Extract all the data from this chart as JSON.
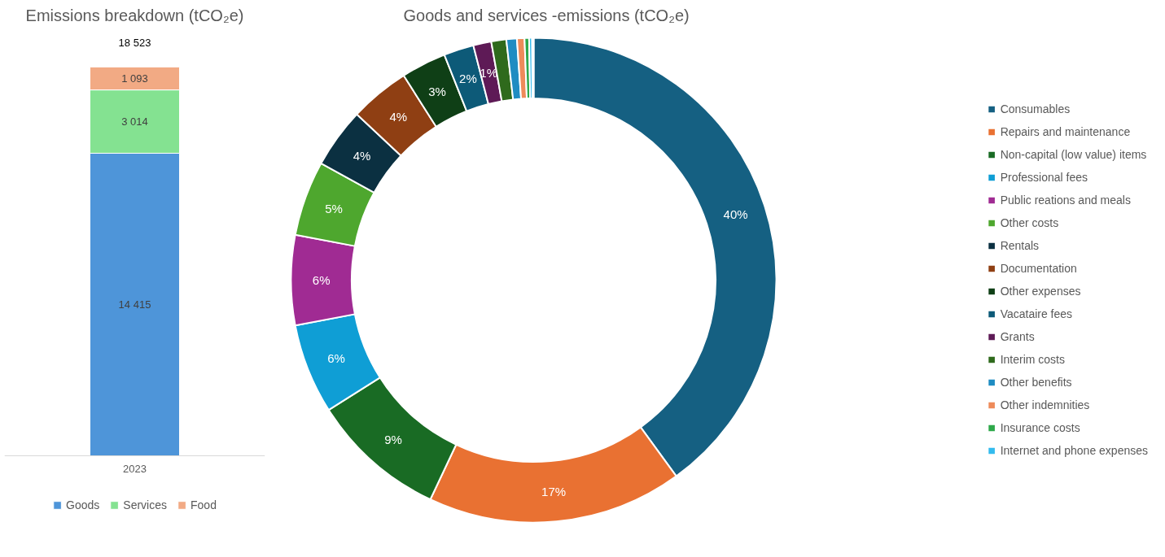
{
  "chart_data": [
    {
      "type": "bar",
      "title": "Emissions breakdown (tCO₂e)",
      "categories": [
        "2023"
      ],
      "stacked": true,
      "legend": "bottom",
      "grid": false,
      "tick_labels": "x",
      "series": [
        {
          "name": "Goods",
          "color": "#4e95d9",
          "values": [
            14415
          ],
          "value_labels": [
            "14 415"
          ]
        },
        {
          "name": "Services",
          "color": "#84e291",
          "values": [
            3014
          ],
          "value_labels": [
            "3 014"
          ]
        },
        {
          "name": "Food",
          "color": "#f2aa84",
          "values": [
            1093
          ],
          "value_labels": [
            "1 093"
          ]
        }
      ],
      "totals": [
        "18 523"
      ]
    },
    {
      "type": "donut",
      "title": "Goods and services -emissions (tCO₂e)",
      "legend": "right",
      "categories": [
        "Consumables",
        "Repairs and maintenance",
        "Non-capital (low value) items",
        "Professional fees",
        "Public reations and meals",
        "Other costs",
        "Rentals",
        "Documentation",
        "Other expenses",
        "Vacataire fees",
        "Grants",
        "Interim costs",
        "Other benefits",
        "Other indemnities",
        "Insurance costs",
        "Internet and phone expenses",
        null
      ],
      "values": [
        40,
        17,
        9,
        6,
        6,
        5,
        4,
        4,
        3,
        2,
        1.2,
        1.0,
        0.7,
        0.5,
        0.3,
        0.2,
        0.1
      ],
      "value_labels": [
        "40%",
        "17%",
        "9%",
        "6%",
        "6%",
        "5%",
        "4%",
        "4%",
        "3%",
        "2%",
        "1%",
        null,
        null,
        null,
        null,
        null,
        null
      ],
      "colors": [
        "#156082",
        "#e97132",
        "#196b24",
        "#0f9ed5",
        "#a02b93",
        "#4ea72e",
        "#0b3041",
        "#8f3f13",
        "#0f3f16",
        "#0d5a78",
        "#5e1a56",
        "#2f6a1c",
        "#1f8cc2",
        "#ee8b5a",
        "#2ea84a",
        "#33bbee",
        "#d98ad1"
      ]
    }
  ]
}
